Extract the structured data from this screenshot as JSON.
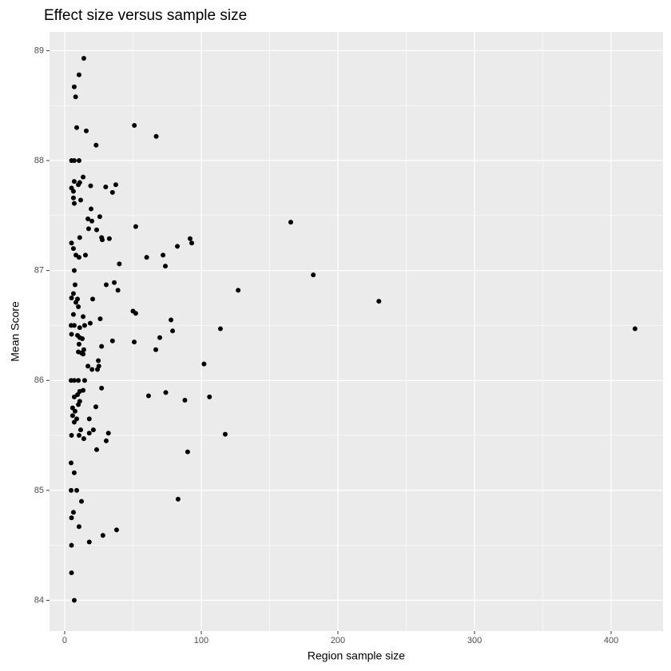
{
  "chart_data": {
    "type": "scatter",
    "title": "Effect size versus sample size",
    "x_label": "Region sample size",
    "y_label": "Mean Score",
    "color": "#000000",
    "grid": true,
    "xlim": [
      -11.1,
      438
    ],
    "ylim": [
      83.72,
      89.17
    ],
    "xticks": [
      0,
      100,
      200,
      300,
      400
    ],
    "yticks": [
      84,
      85,
      86,
      87,
      88,
      89
    ],
    "x": [
      14,
      10.5,
      7,
      8,
      51,
      8.8,
      15.8,
      67,
      23,
      5,
      7,
      10.5,
      13.5,
      7,
      11,
      10,
      19,
      37.4,
      30,
      5,
      6.4,
      35,
      6.4,
      11.7,
      7,
      19.3,
      25.7,
      17,
      19.9,
      165.5,
      52,
      17.5,
      23.4,
      11,
      27,
      27.5,
      32.7,
      91.8,
      93,
      5,
      82.5,
      6.4,
      15.2,
      8.2,
      72,
      10.5,
      60,
      40,
      73.7,
      7,
      182,
      7.6,
      30.4,
      36.3,
      127,
      39,
      6.4,
      20.5,
      5,
      9.4,
      230,
      8.2,
      10,
      50,
      52,
      6.4,
      13.5,
      77.8,
      26,
      18.7,
      4.7,
      7,
      14.6,
      11,
      114,
      417.5,
      79,
      5,
      9.4,
      11,
      12.9,
      69.6,
      35,
      50.9,
      10.5,
      27,
      14,
      10,
      12.3,
      66.7,
      13.5,
      24.6,
      102,
      17,
      25,
      20,
      24,
      4.7,
      7,
      10,
      14.6,
      27,
      13.5,
      11,
      74,
      9.4,
      61.4,
      106,
      7,
      88,
      11,
      10,
      5.8,
      22.8,
      7.6,
      5.8,
      18,
      8.8,
      7,
      11.7,
      21,
      32,
      18,
      5,
      10.5,
      117.5,
      14,
      30.4,
      23.4,
      90,
      4.7,
      7,
      4.7,
      8.8,
      83,
      12.3,
      6.4,
      5,
      10.5,
      38,
      28,
      18,
      5,
      5,
      7
    ],
    "y": [
      88.93,
      88.78,
      88.67,
      88.58,
      88.32,
      88.3,
      88.27,
      88.22,
      88.14,
      88.0,
      88.0,
      88.0,
      87.85,
      87.81,
      87.8,
      87.78,
      87.77,
      87.78,
      87.76,
      87.75,
      87.72,
      87.71,
      87.66,
      87.64,
      87.61,
      87.56,
      87.49,
      87.47,
      87.45,
      87.44,
      87.4,
      87.38,
      87.37,
      87.3,
      87.3,
      87.28,
      87.29,
      87.29,
      87.25,
      87.25,
      87.22,
      87.2,
      87.14,
      87.14,
      87.14,
      87.12,
      87.12,
      87.06,
      87.04,
      87.0,
      86.96,
      86.87,
      86.87,
      86.89,
      86.82,
      86.82,
      86.79,
      86.74,
      86.75,
      86.74,
      86.72,
      86.71,
      86.67,
      86.63,
      86.61,
      86.6,
      86.58,
      86.55,
      86.56,
      86.52,
      86.5,
      86.5,
      86.5,
      86.48,
      86.47,
      86.47,
      86.45,
      86.42,
      86.41,
      86.39,
      86.38,
      86.39,
      86.36,
      86.35,
      86.33,
      86.31,
      86.28,
      86.26,
      86.25,
      86.28,
      86.24,
      86.18,
      86.15,
      86.13,
      86.13,
      86.1,
      86.1,
      86.0,
      86.0,
      86.0,
      86.0,
      85.93,
      85.91,
      85.9,
      85.89,
      85.87,
      85.86,
      85.85,
      85.85,
      85.82,
      85.81,
      85.78,
      85.75,
      85.76,
      85.72,
      85.68,
      85.65,
      85.65,
      85.62,
      85.55,
      85.55,
      85.52,
      85.52,
      85.5,
      85.5,
      85.51,
      85.47,
      85.45,
      85.37,
      85.35,
      85.25,
      85.16,
      85.0,
      85.0,
      84.92,
      84.9,
      84.8,
      84.75,
      84.67,
      84.64,
      84.59,
      84.53,
      84.5,
      84.25,
      84.0
    ]
  }
}
